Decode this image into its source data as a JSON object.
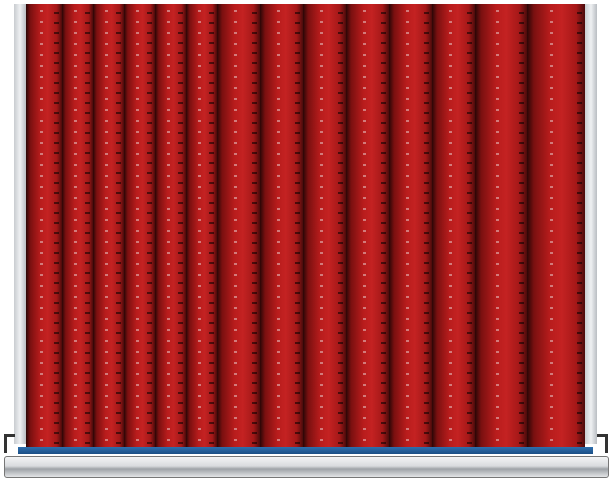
{
  "image": {
    "subject": "drawer-divider-partitions",
    "divider_count": 14,
    "colors": {
      "divider_red": "#c42222",
      "front_blue": "#1b4f86",
      "rail_grey": "#d9dbde"
    }
  }
}
